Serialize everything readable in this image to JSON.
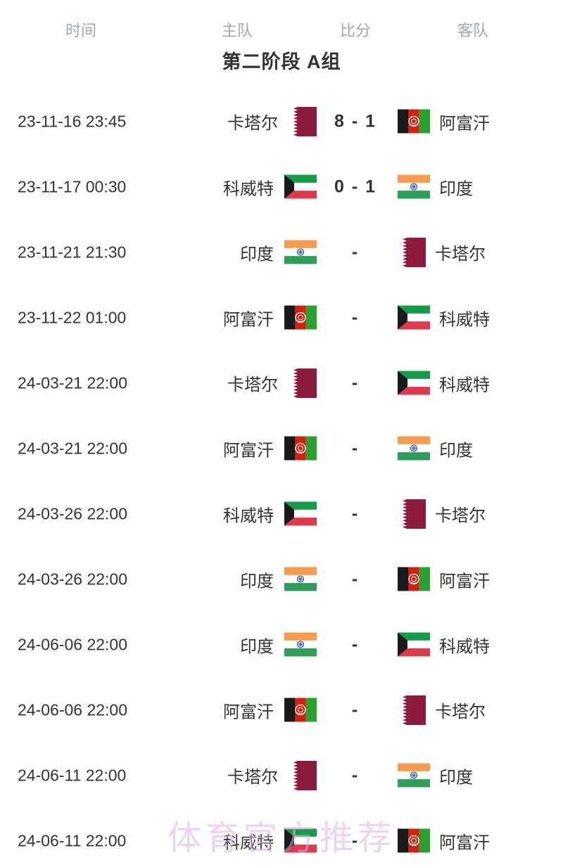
{
  "header": {
    "columns": [
      "时间",
      "主队",
      "比分",
      "客队"
    ]
  },
  "group_title": "第二阶段 A组",
  "watermark": "体育官方推荐",
  "matches": [
    {
      "time": "23-11-16 23:45",
      "home": "卡塔尔",
      "home_flag": "qatar",
      "score": "8 - 1",
      "away": "阿富汗",
      "away_flag": "afghanistan"
    },
    {
      "time": "23-11-17 00:30",
      "home": "科威特",
      "home_flag": "kuwait",
      "score": "0 - 1",
      "away": "印度",
      "away_flag": "india"
    },
    {
      "time": "23-11-21 21:30",
      "home": "印度",
      "home_flag": "india",
      "score": "-",
      "away": "卡塔尔",
      "away_flag": "qatar"
    },
    {
      "time": "23-11-22 01:00",
      "home": "阿富汗",
      "home_flag": "afghanistan",
      "score": "-",
      "away": "科威特",
      "away_flag": "kuwait"
    },
    {
      "time": "24-03-21 22:00",
      "home": "卡塔尔",
      "home_flag": "qatar",
      "score": "-",
      "away": "科威特",
      "away_flag": "kuwait"
    },
    {
      "time": "24-03-21 22:00",
      "home": "阿富汗",
      "home_flag": "afghanistan",
      "score": "-",
      "away": "印度",
      "away_flag": "india"
    },
    {
      "time": "24-03-26 22:00",
      "home": "科威特",
      "home_flag": "kuwait",
      "score": "-",
      "away": "卡塔尔",
      "away_flag": "qatar"
    },
    {
      "time": "24-03-26 22:00",
      "home": "印度",
      "home_flag": "india",
      "score": "-",
      "away": "阿富汗",
      "away_flag": "afghanistan"
    },
    {
      "time": "24-06-06 22:00",
      "home": "印度",
      "home_flag": "india",
      "score": "-",
      "away": "科威特",
      "away_flag": "kuwait"
    },
    {
      "time": "24-06-06 22:00",
      "home": "阿富汗",
      "home_flag": "afghanistan",
      "score": "-",
      "away": "卡塔尔",
      "away_flag": "qatar"
    },
    {
      "time": "24-06-11 22:00",
      "home": "卡塔尔",
      "home_flag": "qatar",
      "score": "-",
      "away": "印度",
      "away_flag": "india"
    },
    {
      "time": "24-06-11 22:00",
      "home": "科威特",
      "home_flag": "kuwait",
      "score": "-",
      "away": "阿富汗",
      "away_flag": "afghanistan"
    }
  ],
  "colors": {
    "text": "#333333",
    "header_gray": "#a3a8ae",
    "watermark_top": "#f5aed6",
    "watermark_bottom": "#c3b6ef",
    "flags": {
      "qatar": {
        "maroon": "#8d1b3d",
        "white": "#ffffff"
      },
      "afghanistan": {
        "black": "#1a1a1a",
        "red": "#d32011",
        "green": "#2aa12e",
        "white": "#ffffff"
      },
      "kuwait": {
        "green": "#169b4a",
        "white": "#ffffff",
        "red": "#dd3a4e",
        "black": "#1a1a1a"
      },
      "india": {
        "saffron": "#f79b4f",
        "white": "#ffffff",
        "green": "#2f9e5b",
        "navy": "#2a4fa0"
      }
    }
  }
}
